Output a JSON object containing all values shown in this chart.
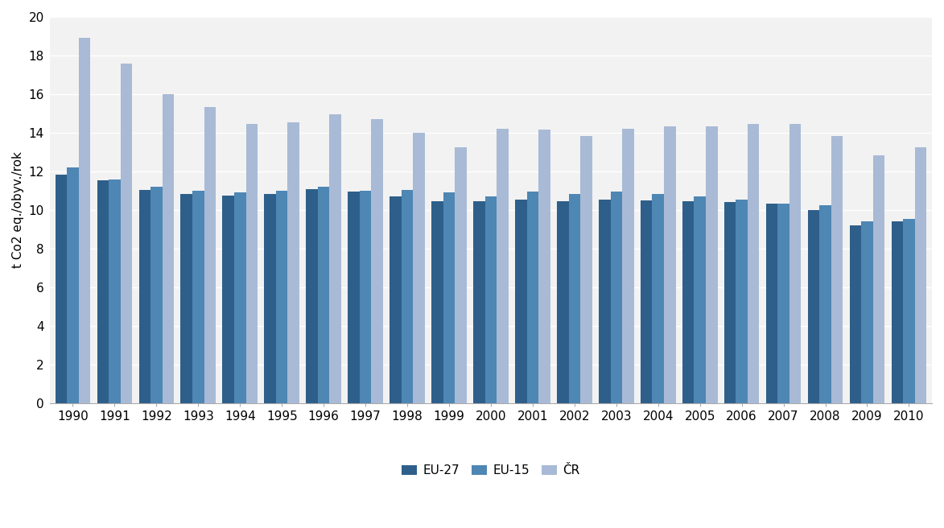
{
  "years": [
    1990,
    1991,
    1992,
    1993,
    1994,
    1995,
    1996,
    1997,
    1998,
    1999,
    2000,
    2001,
    2002,
    2003,
    2004,
    2005,
    2006,
    2007,
    2008,
    2009,
    2010
  ],
  "eu27": [
    11.85,
    11.55,
    11.05,
    10.85,
    10.75,
    10.85,
    11.1,
    10.95,
    10.7,
    10.45,
    10.45,
    10.55,
    10.45,
    10.55,
    10.5,
    10.45,
    10.4,
    10.35,
    10.0,
    9.2,
    9.4
  ],
  "eu15": [
    12.2,
    11.6,
    11.2,
    11.0,
    10.9,
    11.0,
    11.2,
    11.0,
    11.05,
    10.9,
    10.7,
    10.95,
    10.85,
    10.95,
    10.85,
    10.7,
    10.55,
    10.35,
    10.25,
    9.4,
    9.55
  ],
  "cr": [
    18.9,
    17.6,
    16.0,
    15.35,
    14.45,
    14.55,
    14.95,
    14.7,
    14.0,
    13.25,
    14.2,
    14.15,
    13.85,
    14.2,
    14.35,
    14.35,
    14.45,
    14.45,
    13.85,
    12.85,
    13.25
  ],
  "eu27_color": "#2E5F8A",
  "eu15_color": "#4E86B4",
  "cr_color": "#A8BAD5",
  "ylabel": "t Co2 eq./obyv./rok",
  "ylim": [
    0,
    20
  ],
  "yticks": [
    0,
    2,
    4,
    6,
    8,
    10,
    12,
    14,
    16,
    18,
    20
  ],
  "legend_labels": [
    "EU-27",
    "EU-15",
    "ČR"
  ],
  "bar_width": 0.28,
  "background_color": "#FFFFFF",
  "plot_bg_color": "#F2F2F2",
  "grid_color": "#FFFFFF",
  "spine_color": "#AAAAAA"
}
